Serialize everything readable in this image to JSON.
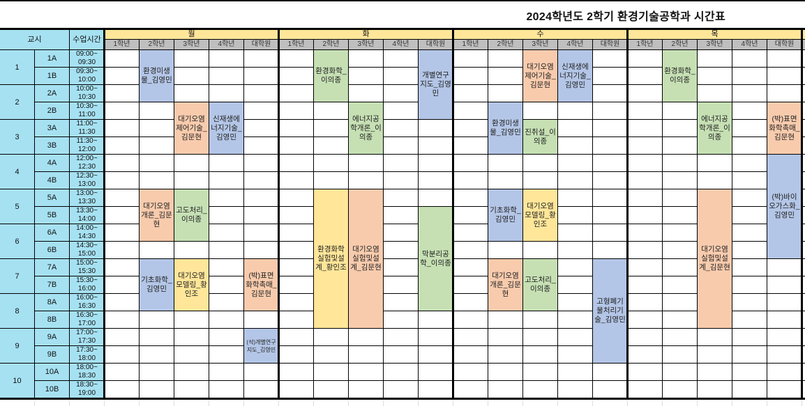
{
  "title": "2024학년도 2학기 환경기술공학과 시간표",
  "header": {
    "period_label": "교시",
    "time_label": "수업시간"
  },
  "grades": [
    "1학년",
    "2학년",
    "3학년",
    "4학년",
    "대학원"
  ],
  "colors": {
    "blue": "#b4c6e7",
    "orange": "#f8cbad",
    "green": "#c6e0b4",
    "yellow": "#ffe699",
    "header_cyan": "#a6e1f2",
    "day_header": "#ffe699",
    "grade_header": "#bfbfbf"
  },
  "periods": [
    {
      "num": "1",
      "slots": [
        {
          "id": "1A",
          "start": "09:00~",
          "end": "09:30"
        },
        {
          "id": "1B",
          "start": "09:30~",
          "end": "10:00"
        }
      ]
    },
    {
      "num": "2",
      "slots": [
        {
          "id": "2A",
          "start": "10:00~",
          "end": "10:30"
        },
        {
          "id": "2B",
          "start": "10:30~",
          "end": "11:00"
        }
      ]
    },
    {
      "num": "3",
      "slots": [
        {
          "id": "3A",
          "start": "11:00~",
          "end": "11:30"
        },
        {
          "id": "3B",
          "start": "11:30~",
          "end": "12:00"
        }
      ]
    },
    {
      "num": "4",
      "slots": [
        {
          "id": "4A",
          "start": "12:00~",
          "end": "12:30"
        },
        {
          "id": "4B",
          "start": "12:30~",
          "end": "13:00"
        }
      ]
    },
    {
      "num": "5",
      "slots": [
        {
          "id": "5A",
          "start": "13:00~",
          "end": "13:30"
        },
        {
          "id": "5B",
          "start": "13:30~",
          "end": "14:00"
        }
      ]
    },
    {
      "num": "6",
      "slots": [
        {
          "id": "6A",
          "start": "14:00~",
          "end": "14:30"
        },
        {
          "id": "6B",
          "start": "14:30~",
          "end": "15:00"
        }
      ]
    },
    {
      "num": "7",
      "slots": [
        {
          "id": "7A",
          "start": "15:00~",
          "end": "15:30"
        },
        {
          "id": "7B",
          "start": "15:30~",
          "end": "16:00"
        }
      ]
    },
    {
      "num": "8",
      "slots": [
        {
          "id": "8A",
          "start": "16:00~",
          "end": "16:30"
        },
        {
          "id": "8B",
          "start": "16:30~",
          "end": "17:00"
        }
      ]
    },
    {
      "num": "9",
      "slots": [
        {
          "id": "9A",
          "start": "17:00~",
          "end": "17:30"
        },
        {
          "id": "9B",
          "start": "17:30~",
          "end": "18:00"
        }
      ]
    },
    {
      "num": "10",
      "slots": [
        {
          "id": "10A",
          "start": "18:00~",
          "end": "18:30"
        },
        {
          "id": "10B",
          "start": "18:30~",
          "end": "19:00"
        }
      ]
    }
  ],
  "days": [
    {
      "label": "월",
      "classes": [
        {
          "grade": 1,
          "slot": "1A",
          "span": 3,
          "color": "blue",
          "text": "환경미생물_김영민"
        },
        {
          "grade": 2,
          "slot": "2B",
          "span": 3,
          "color": "orange",
          "text": "대기오염제어기술_김문현"
        },
        {
          "grade": 3,
          "slot": "2B",
          "span": 3,
          "color": "blue",
          "text": "신재생에너지기술_김영민"
        },
        {
          "grade": 1,
          "slot": "5A",
          "span": 3,
          "color": "orange",
          "text": "대기오염개론_김문현"
        },
        {
          "grade": 2,
          "slot": "5A",
          "span": 3,
          "color": "green",
          "text": "고도처리_이의종"
        },
        {
          "grade": 1,
          "slot": "7A",
          "span": 3,
          "color": "blue",
          "text": "기초화학_김영민"
        },
        {
          "grade": 2,
          "slot": "7A",
          "span": 3,
          "color": "yellow",
          "text": "대기오염모델링_황인조"
        },
        {
          "grade": 4,
          "slot": "7A",
          "span": 3,
          "color": "orange",
          "text": "(박)표면화학촉매_김문현"
        },
        {
          "grade": 4,
          "slot": "9A",
          "span": 2,
          "color": "blue",
          "text": "(석)개별연구지도_김영민",
          "small": true
        }
      ]
    },
    {
      "label": "화",
      "classes": [
        {
          "grade": 1,
          "slot": "1A",
          "span": 3,
          "color": "green",
          "text": "환경화학_이의종"
        },
        {
          "grade": 4,
          "slot": "1A",
          "span": 4,
          "color": "blue",
          "text": "개별연구지도_김영민"
        },
        {
          "grade": 2,
          "slot": "2B",
          "span": 3,
          "color": "green",
          "text": "에너지공학개론_이의종"
        },
        {
          "grade": 1,
          "slot": "5A",
          "span": 8,
          "color": "yellow",
          "text": "환경화학실험및설계_황인조"
        },
        {
          "grade": 2,
          "slot": "5A",
          "span": 8,
          "color": "orange",
          "text": "대기오염실험및설계_김문현"
        },
        {
          "grade": 4,
          "slot": "5B",
          "span": 6,
          "color": "green",
          "text": "막분리공학_이의종"
        }
      ]
    },
    {
      "label": "수",
      "classes": [
        {
          "grade": 2,
          "slot": "1A",
          "span": 3,
          "color": "orange",
          "text": "대기오염제어기술_김문현"
        },
        {
          "grade": 3,
          "slot": "1A",
          "span": 3,
          "color": "blue",
          "text": "신재생에너지기술_김영민"
        },
        {
          "grade": 1,
          "slot": "2B",
          "span": 3,
          "color": "blue",
          "text": "환경미생물_김영민"
        },
        {
          "grade": 2,
          "slot": "3A",
          "span": 2,
          "color": "green",
          "text": "진취설_이의종"
        },
        {
          "grade": 1,
          "slot": "5A",
          "span": 3,
          "color": "blue",
          "text": "기초화학_김영민"
        },
        {
          "grade": 2,
          "slot": "5A",
          "span": 3,
          "color": "yellow",
          "text": "대기오염모델링_황인조"
        },
        {
          "grade": 1,
          "slot": "7A",
          "span": 3,
          "color": "orange",
          "text": "대기오염개론_김문현"
        },
        {
          "grade": 2,
          "slot": "7A",
          "span": 3,
          "color": "green",
          "text": "고도처리_이의종"
        },
        {
          "grade": 4,
          "slot": "7A",
          "span": 6,
          "color": "blue",
          "text": "고형폐기물처리기술_김영민"
        }
      ]
    },
    {
      "label": "목",
      "classes": [
        {
          "grade": 1,
          "slot": "1A",
          "span": 3,
          "color": "green",
          "text": "환경화학_이의종"
        },
        {
          "grade": 2,
          "slot": "2B",
          "span": 3,
          "color": "green",
          "text": "에너지공학개론_이의종"
        },
        {
          "grade": 4,
          "slot": "2B",
          "span": 3,
          "color": "orange",
          "text": "(박)표면화학촉매_김문현"
        },
        {
          "grade": 4,
          "slot": "4A",
          "span": 6,
          "color": "blue",
          "text": "(박)바이오가스화_김영민"
        },
        {
          "grade": 2,
          "slot": "5A",
          "span": 8,
          "color": "orange",
          "text": "대기오염실험및설계_김문현"
        }
      ]
    }
  ]
}
